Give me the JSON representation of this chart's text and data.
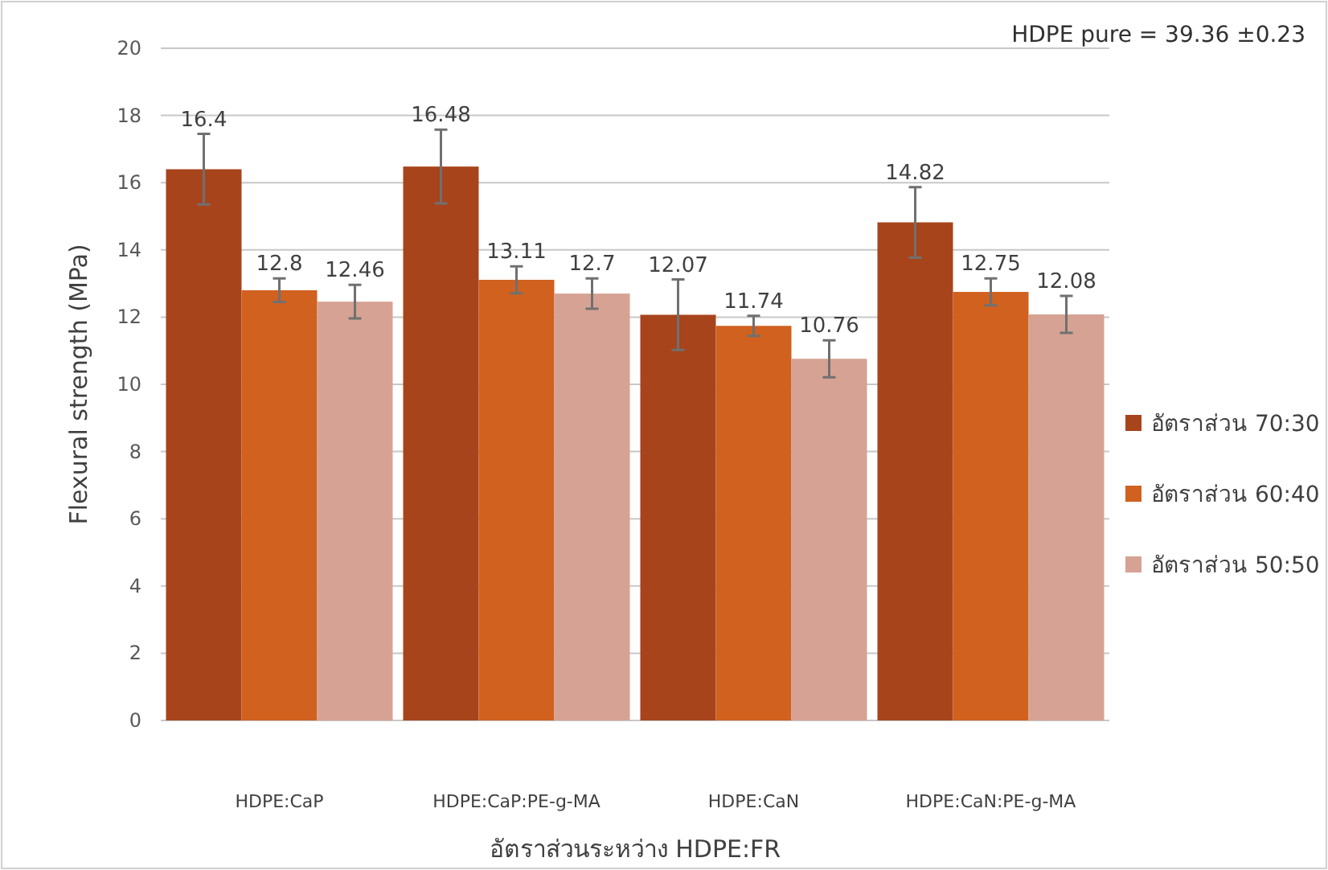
{
  "chart_data": {
    "type": "bar",
    "xlabel": "อัตราส่วนระหว่าง HDPE:FR",
    "ylabel": "Flexural strength (MPa)",
    "categories": [
      "HDPE:CaP",
      "HDPE:CaP:PE-g-MA",
      "HDPE:CaN",
      "HDPE:CaN:PE-g-MA"
    ],
    "series": [
      {
        "name": "อัตราส่วน 70:30",
        "color": "#a8441c",
        "values": [
          16.4,
          16.48,
          12.07,
          14.82
        ],
        "errors": [
          1.05,
          1.1,
          1.05,
          1.05
        ]
      },
      {
        "name": "อัตราส่วน 60:40",
        "color": "#d0611f",
        "values": [
          12.8,
          13.11,
          11.74,
          12.75
        ],
        "errors": [
          0.35,
          0.4,
          0.3,
          0.4
        ]
      },
      {
        "name": "อัตราส่วน 50:50",
        "color": "#d6a293",
        "values": [
          12.46,
          12.7,
          10.76,
          12.08
        ],
        "errors": [
          0.5,
          0.45,
          0.55,
          0.55
        ]
      }
    ],
    "ylim": [
      0,
      20
    ],
    "yticks": [
      0,
      2,
      4,
      6,
      8,
      10,
      12,
      14,
      16,
      18,
      20
    ],
    "grid": "y",
    "legend": "right",
    "data_labels": true,
    "annotations": [
      "HDPE pure = 39.36 ±0.23"
    ]
  }
}
